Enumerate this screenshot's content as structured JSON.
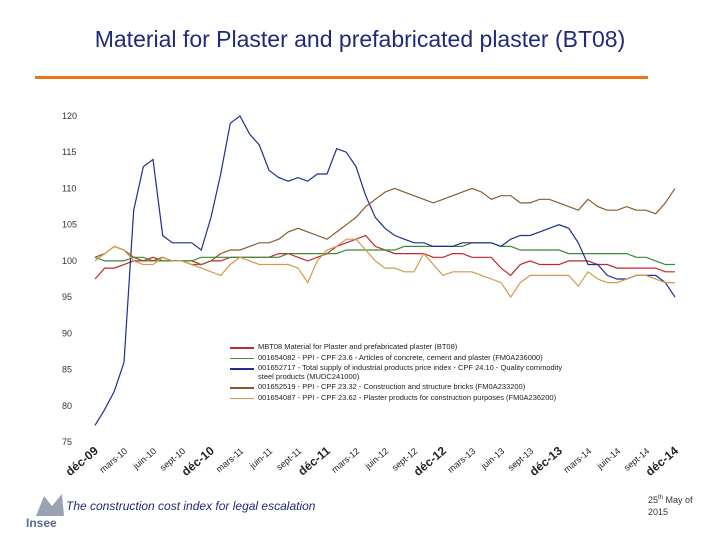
{
  "slide_title": "Material for Plaster and prefabricated plaster (BT08)",
  "footer": {
    "text": "The construction cost index for legal escalation",
    "logo": "Insee",
    "date_day": "25",
    "date_sup": "th",
    "date_rest": "May of",
    "date_year": "2015"
  },
  "chart_data": {
    "type": "line",
    "categories": [
      "déc-09",
      null,
      null,
      "mars-10",
      null,
      null,
      "juin-10",
      null,
      null,
      "sept-10",
      null,
      null,
      "déc-10",
      null,
      null,
      "mars-11",
      null,
      null,
      "juin-11",
      null,
      null,
      "sept-11",
      null,
      null,
      "déc-11",
      null,
      null,
      "mars-12",
      null,
      null,
      "juin-12",
      null,
      null,
      "sept-12",
      null,
      null,
      "déc-12",
      null,
      null,
      "mars-13",
      null,
      null,
      "juin-13",
      null,
      null,
      "sept-13",
      null,
      null,
      "déc-13",
      null,
      null,
      "mars-14",
      null,
      null,
      "juin-14",
      null,
      null,
      "sept-14",
      null,
      null,
      "déc-14"
    ],
    "ylim": [
      75,
      120
    ],
    "yticks": [
      75,
      80,
      85,
      90,
      95,
      100,
      105,
      110,
      115,
      120
    ],
    "grid": false,
    "series": [
      {
        "name": "MBT08 Material for Plaster and prefabricated plaster (BT08)",
        "color": "#c0282a",
        "values": [
          97.5,
          99,
          99,
          99.5,
          100,
          100,
          100.5,
          100,
          100,
          100,
          100,
          99.5,
          100,
          100,
          100.5,
          100.5,
          100.5,
          100.5,
          100.5,
          101,
          101,
          100.5,
          100,
          100.5,
          101,
          102,
          102.5,
          103,
          103.5,
          102,
          101.5,
          101,
          101,
          101,
          101,
          100.5,
          100.5,
          101,
          101,
          100.5,
          100.5,
          100.5,
          99,
          98,
          99.5,
          100,
          99.5,
          99.5,
          99.5,
          100,
          100,
          100,
          99.5,
          99.5,
          99,
          99,
          99,
          99,
          99,
          98.5,
          98.5
        ]
      },
      {
        "name": "001654082 - PPI - CPF 23.6 - Articles of concrete, cement and plaster (FM0A236000)",
        "color": "#3a8a3a",
        "values": [
          100.5,
          100,
          100,
          100,
          100.5,
          100.5,
          100,
          100,
          100,
          100,
          100,
          100.5,
          100.5,
          100.5,
          100.5,
          100.5,
          100.5,
          100.5,
          100.5,
          100.5,
          101,
          101,
          101,
          101,
          101,
          101,
          101.5,
          101.5,
          101.5,
          101.5,
          101.5,
          101.5,
          102,
          102,
          102,
          102,
          102,
          102,
          102,
          102.5,
          102.5,
          102.5,
          102,
          102,
          101.5,
          101.5,
          101.5,
          101.5,
          101.5,
          101,
          101,
          101,
          101,
          101,
          101,
          101,
          100.5,
          100.5,
          100,
          99.5,
          99.5
        ]
      },
      {
        "name": "001652717 - Total supply of industrial products price index - CPF 24.10 - Quality commodity steel products (MUDC241000)",
        "color": "#1f2f8f",
        "values": [
          77.3,
          79.5,
          82,
          86,
          107,
          113,
          114,
          103.5,
          102.5,
          102.5,
          102.5,
          101.5,
          106,
          112,
          119,
          120,
          117.5,
          116,
          112.5,
          111.5,
          111,
          111.5,
          111,
          112,
          112,
          115.5,
          115,
          113,
          109,
          106,
          104.5,
          103.5,
          103,
          102.5,
          102.5,
          102,
          102,
          102,
          102.5,
          102.5,
          102.5,
          102.5,
          102,
          103,
          103.5,
          103.5,
          104,
          104.5,
          105,
          104.5,
          102.5,
          99.5,
          99.5,
          98,
          97.5,
          97.5,
          98,
          98,
          98,
          97,
          95
        ]
      },
      {
        "name": "001652519 - PPI - CPF 23.32 - Construction and structure bricks (FM0A233200)",
        "color": "#8a5a2a",
        "values": [
          100.5,
          101,
          102,
          101.5,
          100.5,
          100,
          100,
          100.5,
          100,
          100,
          99.5,
          99.5,
          100,
          101,
          101.5,
          101.5,
          102,
          102.5,
          102.5,
          103,
          104,
          104.5,
          104,
          103.5,
          103,
          104,
          105,
          106,
          107.5,
          108.5,
          109.5,
          110,
          109.5,
          109,
          108.5,
          108,
          108.5,
          109,
          109.5,
          110,
          109.5,
          108.5,
          109,
          109,
          108,
          108,
          108.5,
          108.5,
          108,
          107.5,
          107,
          108.5,
          107.5,
          107,
          107,
          107.5,
          107,
          107,
          106.5,
          108,
          110
        ]
      },
      {
        "name": "001654087 - PPI - CPF 23.62 - Plaster products for construction purposes (FM0A236200)",
        "color": "#d09a4a",
        "values": [
          100,
          101,
          102,
          101.5,
          100,
          99.5,
          99.5,
          100.5,
          100,
          100,
          99.5,
          99,
          98.5,
          98,
          99.5,
          100.5,
          100,
          99.5,
          99.5,
          99.5,
          99.5,
          99,
          97,
          100,
          101.5,
          102,
          103,
          103,
          101.5,
          100,
          99,
          99,
          98.5,
          98.5,
          101,
          99.5,
          98,
          98.5,
          98.5,
          98.5,
          98,
          97.5,
          97,
          95,
          97,
          98,
          98,
          98,
          98,
          98,
          96.5,
          98.5,
          97.5,
          97,
          97,
          97.5,
          98,
          98,
          97.5,
          97,
          97
        ]
      }
    ]
  }
}
